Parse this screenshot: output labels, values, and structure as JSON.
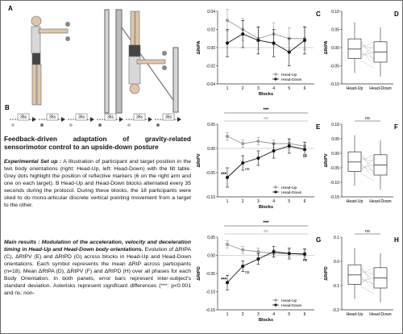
{
  "panel_labels": {
    "A": "A",
    "B": "B",
    "C": "C",
    "D": "D",
    "E": "E",
    "F": "F",
    "G": "G",
    "H": "H"
  },
  "left": {
    "title": "Feedback-driven adaptation of gravity-related sensorimotor control to an upside-down posture",
    "setup_heading": "Experimental Set up :",
    "setup_body": "A Illustration of participant and target position in the two body orientations (right: Head-Up, left: Head-Down) with the tilt table. Grey dots highlight the position of reflective markers (6 on the right arm and one on each target). B Head-Up and Head-Down blocks alternated every 35 seconds during the protocol. During these blocks, the 18 participants were sked to do mono-articular discrete vertical pointing movement from a target to the other.",
    "results_heading": "Main results : Modulation of the acceleration, velocity and deceleration timing in Head-Up and Head-Down body orientations.",
    "results_body": "Evolution of ΔRtPA (C), ΔRtPV (E) and ΔRtPD (G) across blocks in Head-Up and Head-Down orientations. Each symbol represents the mean ΔRtP across participants (n=18). Mean ΔRtPA (D), ΔRtPV (F) and ΔRtPD (H) over all phases for each Body Orientation. In both panels, error bars represent inter-subject's standard deviation. Asterisks represent significant differences (***: p<0.001 and ns: non-",
    "timeline_labels": [
      "35s",
      "35s",
      "35s",
      "35s",
      "35s",
      "35s"
    ]
  },
  "chart_data": [
    {
      "panel": "C",
      "type": "line",
      "ylabel": "ΔRtPA",
      "xlabel": "Blocks",
      "x": [
        1,
        2,
        3,
        4,
        5,
        6
      ],
      "ylim": [
        -0.04,
        0.04
      ],
      "yticks": [
        "0.04",
        "0.02",
        "0.00",
        "-0.02",
        "-0.04"
      ],
      "xticks": [
        "1",
        "2",
        "3",
        "4",
        "5",
        "6"
      ],
      "legend_position": "bottom-right",
      "series": [
        {
          "name": "Head-Up",
          "color": "#9a9a9a",
          "values": [
            0.03,
            0.02,
            0.01,
            0.015,
            0.01,
            0.01
          ],
          "err": [
            0.012,
            0.012,
            0.012,
            0.012,
            0.012,
            0.012
          ]
        },
        {
          "name": "Head-Down",
          "color": "#111111",
          "values": [
            0.005,
            0.015,
            0.008,
            0.005,
            -0.005,
            0.008
          ],
          "err": [
            0.015,
            0.015,
            0.015,
            0.015,
            0.015,
            0.015
          ]
        }
      ]
    },
    {
      "panel": "D",
      "type": "box",
      "ylabel": "ΔRtPA",
      "categories": [
        "Head-Up",
        "Head-Down"
      ],
      "ylim": [
        -0.1,
        0.1
      ],
      "yticks": [
        "0.10",
        "0.05",
        "0.00",
        "-0.05",
        "-0.10"
      ]
    },
    {
      "panel": "E",
      "type": "line",
      "ylabel": "ΔRtPV",
      "xlabel": "Blocks",
      "x": [
        1,
        2,
        3,
        4,
        5,
        6
      ],
      "ylim": [
        -0.1,
        0.05
      ],
      "yticks": [
        "0.05",
        "0.00",
        "-0.05",
        "-0.10"
      ],
      "xticks": [
        "1",
        "2",
        "3",
        "4",
        "5",
        "6"
      ],
      "legend_position": "bottom-right",
      "annotations": [
        "***",
        "ns",
        "***",
        "ns",
        "ns",
        "ns"
      ],
      "series": [
        {
          "name": "Head-Up",
          "color": "#9a9a9a",
          "values": [
            0.025,
            0.01,
            0.015,
            0.01,
            0.01,
            0.005
          ],
          "err": [
            0.008,
            0.008,
            0.008,
            0.008,
            0.008,
            0.008
          ]
        },
        {
          "name": "Head-Down",
          "color": "#111111",
          "values": [
            -0.06,
            -0.03,
            -0.02,
            -0.005,
            0.005,
            -0.002
          ],
          "err": [
            0.02,
            0.015,
            0.015,
            0.015,
            0.015,
            0.015
          ]
        }
      ]
    },
    {
      "panel": "F",
      "type": "box",
      "ylabel": "ΔRtPV",
      "categories": [
        "Head-Up",
        "Head-Down"
      ],
      "ylim": [
        -0.15,
        0.1
      ],
      "yticks": [
        "0.10",
        "0.05",
        "0.00",
        "-0.05",
        "-0.10",
        "-0.15"
      ],
      "annotations": [
        "ns"
      ]
    },
    {
      "panel": "G",
      "type": "line",
      "ylabel": "ΔRtPD",
      "xlabel": "Blocks",
      "x": [
        1,
        2,
        3,
        4,
        5,
        6
      ],
      "ylim": [
        -0.15,
        0.05
      ],
      "yticks": [
        "0.05",
        "0.00",
        "-0.05",
        "-0.10",
        "-0.15"
      ],
      "xticks": [
        "1",
        "2",
        "3",
        "4",
        "5",
        "6"
      ],
      "legend_position": "bottom-right",
      "annotations": [
        "***",
        "ns",
        "***",
        "ns",
        "ns"
      ],
      "series": [
        {
          "name": "Head-Up",
          "color": "#9a9a9a",
          "values": [
            0.03,
            0.015,
            0.01,
            0.005,
            0.005,
            0.005
          ],
          "err": [
            0.01,
            0.01,
            0.01,
            0.01,
            0.01,
            0.01
          ]
        },
        {
          "name": "Head-Down",
          "color": "#111111",
          "values": [
            -0.075,
            -0.03,
            -0.01,
            0.01,
            0.005,
            0.003
          ],
          "err": [
            0.02,
            0.015,
            0.015,
            0.015,
            0.015,
            0.015
          ]
        }
      ]
    },
    {
      "panel": "H",
      "type": "box",
      "ylabel": "ΔRtPD",
      "categories": [
        "Head-Up",
        "Head-Down"
      ],
      "ylim": [
        -0.2,
        0.1
      ],
      "yticks": [
        "0.1",
        "0.0",
        "-0.1",
        "-0.2"
      ],
      "annotations": [
        "ns"
      ]
    }
  ]
}
